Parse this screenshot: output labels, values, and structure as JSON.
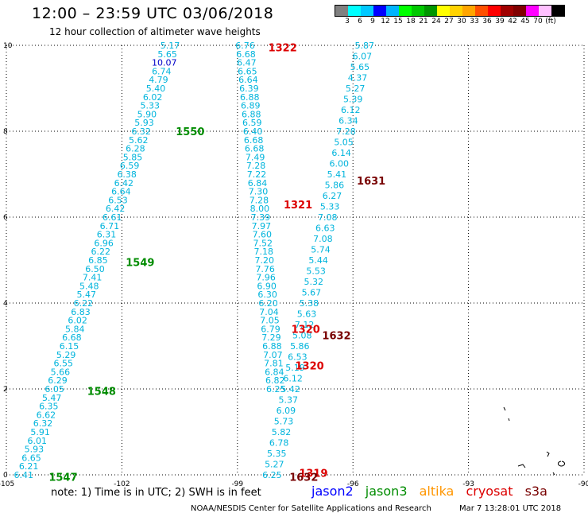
{
  "header": {
    "title": "12:00 – 23:59 UTC 03/06/2018",
    "subtitle": "12 hour collection of altimeter wave heights"
  },
  "color_scale": {
    "unit": "(ft)",
    "colors": [
      "#808080",
      "#00ffff",
      "#00c8ff",
      "#0000ff",
      "#00b4ff",
      "#00ff00",
      "#00c800",
      "#009600",
      "#ffff00",
      "#ffd200",
      "#ffa500",
      "#ff5000",
      "#ff0000",
      "#a00000",
      "#800000",
      "#ff00ff",
      "#ffc0ff",
      "#000000"
    ],
    "ticks": [
      "3",
      "6",
      "9",
      "12",
      "15",
      "18",
      "21",
      "24",
      "27",
      "30",
      "33",
      "36",
      "39",
      "42",
      "45",
      "70"
    ]
  },
  "axes": {
    "x_ticks": [
      "-105",
      "-102",
      "-99",
      "-96",
      "-93",
      "-90"
    ],
    "y_ticks": [
      "0",
      "2",
      "4",
      "6",
      "8",
      "10"
    ]
  },
  "colors": {
    "swh_text": "#00b4dc",
    "swh_text_dark": "#0000c8",
    "jason2": "#0000ff",
    "jason3": "#008c00",
    "altika": "#ff9600",
    "cryosat": "#dc0000",
    "s3a": "#780000"
  },
  "chart_data": {
    "type": "scatter",
    "xlim": [
      -105,
      -90
    ],
    "ylim": [
      0,
      10
    ],
    "tracks": [
      {
        "satellite": "jason3",
        "points": [
          {
            "x": -104.55,
            "y": 0.0,
            "v": "6.41"
          },
          {
            "x": -104.42,
            "y": 0.2,
            "v": "6.21"
          },
          {
            "x": -104.35,
            "y": 0.4,
            "v": "6.65"
          },
          {
            "x": -104.28,
            "y": 0.6,
            "v": "5.93"
          },
          {
            "x": -104.2,
            "y": 0.8,
            "v": "6.01"
          },
          {
            "x": -104.12,
            "y": 1.0,
            "v": "5.91"
          },
          {
            "x": -104.05,
            "y": 1.2,
            "v": "6.32"
          },
          {
            "x": -103.97,
            "y": 1.4,
            "v": "6.62"
          },
          {
            "x": -103.9,
            "y": 1.6,
            "v": "6.35"
          },
          {
            "x": -103.82,
            "y": 1.8,
            "v": "5.47"
          },
          {
            "x": -103.75,
            "y": 2.0,
            "v": "6.05"
          },
          {
            "x": -103.67,
            "y": 2.2,
            "v": "6.29"
          },
          {
            "x": -103.6,
            "y": 2.4,
            "v": "5.66"
          },
          {
            "x": -103.52,
            "y": 2.6,
            "v": "6.55"
          },
          {
            "x": -103.45,
            "y": 2.8,
            "v": "5.29"
          },
          {
            "x": -103.37,
            "y": 3.0,
            "v": "6.15"
          },
          {
            "x": -103.3,
            "y": 3.2,
            "v": "6.68"
          },
          {
            "x": -103.22,
            "y": 3.4,
            "v": "5.84"
          },
          {
            "x": -103.15,
            "y": 3.6,
            "v": "6.02"
          },
          {
            "x": -103.07,
            "y": 3.8,
            "v": "6.83"
          },
          {
            "x": -103.0,
            "y": 4.0,
            "v": "6.22"
          },
          {
            "x": -102.92,
            "y": 4.2,
            "v": "5.47"
          },
          {
            "x": -102.85,
            "y": 4.4,
            "v": "5.48"
          },
          {
            "x": -102.77,
            "y": 4.6,
            "v": "7.41"
          },
          {
            "x": -102.7,
            "y": 4.8,
            "v": "6.50"
          },
          {
            "x": -102.62,
            "y": 5.0,
            "v": "6.85"
          },
          {
            "x": -102.55,
            "y": 5.2,
            "v": "6.22"
          },
          {
            "x": -102.47,
            "y": 5.4,
            "v": "6.96"
          },
          {
            "x": -102.4,
            "y": 5.6,
            "v": "6.31"
          },
          {
            "x": -102.32,
            "y": 5.8,
            "v": "6.71"
          },
          {
            "x": -102.25,
            "y": 6.0,
            "v": "6.61"
          },
          {
            "x": -102.17,
            "y": 6.2,
            "v": "6.42"
          },
          {
            "x": -102.1,
            "y": 6.4,
            "v": "6.53"
          },
          {
            "x": -102.02,
            "y": 6.6,
            "v": "6.64"
          },
          {
            "x": -101.95,
            "y": 6.8,
            "v": "6.42"
          },
          {
            "x": -101.87,
            "y": 7.0,
            "v": "6.38"
          },
          {
            "x": -101.8,
            "y": 7.2,
            "v": "6.59"
          },
          {
            "x": -101.72,
            "y": 7.4,
            "v": "5.85"
          },
          {
            "x": -101.65,
            "y": 7.6,
            "v": "6.28"
          },
          {
            "x": -101.57,
            "y": 7.8,
            "v": "5.62"
          },
          {
            "x": -101.5,
            "y": 8.0,
            "v": "6.32"
          },
          {
            "x": -101.42,
            "y": 8.2,
            "v": "5.93"
          },
          {
            "x": -101.35,
            "y": 8.4,
            "v": "5.90"
          },
          {
            "x": -101.27,
            "y": 8.6,
            "v": "5.33"
          },
          {
            "x": -101.2,
            "y": 8.8,
            "v": "6.02"
          },
          {
            "x": -101.12,
            "y": 9.0,
            "v": "5.40"
          },
          {
            "x": -101.05,
            "y": 9.2,
            "v": "4.79"
          },
          {
            "x": -100.97,
            "y": 9.4,
            "v": "6.74"
          },
          {
            "x": -100.9,
            "y": 9.6,
            "v": "10.07"
          },
          {
            "x": -100.82,
            "y": 9.8,
            "v": "5.65"
          },
          {
            "x": -100.75,
            "y": 10.0,
            "v": "5.17"
          }
        ]
      },
      {
        "satellite": "cryosat",
        "points": [
          {
            "x": -98.8,
            "y": 10.0,
            "v": "6.76"
          },
          {
            "x": -98.78,
            "y": 9.8,
            "v": "6.68"
          },
          {
            "x": -98.76,
            "y": 9.6,
            "v": "6.47"
          },
          {
            "x": -98.74,
            "y": 9.4,
            "v": "6.65"
          },
          {
            "x": -98.72,
            "y": 9.2,
            "v": "6.64"
          },
          {
            "x": -98.7,
            "y": 9.0,
            "v": "6.39"
          },
          {
            "x": -98.68,
            "y": 8.8,
            "v": "6.88"
          },
          {
            "x": -98.66,
            "y": 8.6,
            "v": "6.89"
          },
          {
            "x": -98.64,
            "y": 8.4,
            "v": "6.88"
          },
          {
            "x": -98.62,
            "y": 8.2,
            "v": "6.59"
          },
          {
            "x": -98.6,
            "y": 8.0,
            "v": "6.40"
          },
          {
            "x": -98.58,
            "y": 7.8,
            "v": "6.68"
          },
          {
            "x": -98.56,
            "y": 7.6,
            "v": "6.68"
          },
          {
            "x": -98.54,
            "y": 7.4,
            "v": "7.49"
          },
          {
            "x": -98.52,
            "y": 7.2,
            "v": "7.28"
          },
          {
            "x": -98.5,
            "y": 7.0,
            "v": "7.22"
          },
          {
            "x": -98.48,
            "y": 6.8,
            "v": "6.84"
          },
          {
            "x": -98.46,
            "y": 6.6,
            "v": "7.30"
          },
          {
            "x": -98.44,
            "y": 6.4,
            "v": "7.28"
          },
          {
            "x": -98.42,
            "y": 6.2,
            "v": "8.00"
          },
          {
            "x": -98.4,
            "y": 6.0,
            "v": "7.39"
          },
          {
            "x": -98.38,
            "y": 5.8,
            "v": "7.97"
          },
          {
            "x": -98.36,
            "y": 5.6,
            "v": "7.60"
          },
          {
            "x": -98.34,
            "y": 5.4,
            "v": "7.52"
          },
          {
            "x": -98.32,
            "y": 5.2,
            "v": "7.18"
          },
          {
            "x": -98.3,
            "y": 5.0,
            "v": "7.20"
          },
          {
            "x": -98.28,
            "y": 4.8,
            "v": "7.76"
          },
          {
            "x": -98.26,
            "y": 4.6,
            "v": "7.96"
          },
          {
            "x": -98.24,
            "y": 4.4,
            "v": "6.90"
          },
          {
            "x": -98.22,
            "y": 4.2,
            "v": "6.30"
          },
          {
            "x": -98.2,
            "y": 4.0,
            "v": "6.20"
          },
          {
            "x": -98.18,
            "y": 3.8,
            "v": "7.04"
          },
          {
            "x": -98.16,
            "y": 3.6,
            "v": "7.05"
          },
          {
            "x": -98.14,
            "y": 3.4,
            "v": "6.79"
          },
          {
            "x": -98.12,
            "y": 3.2,
            "v": "7.29"
          },
          {
            "x": -98.1,
            "y": 3.0,
            "v": "6.88"
          },
          {
            "x": -98.08,
            "y": 2.8,
            "v": "7.07"
          },
          {
            "x": -98.06,
            "y": 2.6,
            "v": "7.81"
          },
          {
            "x": -98.04,
            "y": 2.4,
            "v": "6.84"
          },
          {
            "x": -98.02,
            "y": 2.2,
            "v": "6.82"
          },
          {
            "x": -98.0,
            "y": 2.0,
            "v": "6.25"
          }
        ]
      },
      {
        "satellite": "s3a",
        "points": [
          {
            "x": -95.7,
            "y": 10.0,
            "v": "5.87"
          },
          {
            "x": -95.76,
            "y": 9.75,
            "v": "6.07"
          },
          {
            "x": -95.82,
            "y": 9.5,
            "v": "5.65"
          },
          {
            "x": -95.88,
            "y": 9.25,
            "v": "4.37"
          },
          {
            "x": -95.94,
            "y": 9.0,
            "v": "5.27"
          },
          {
            "x": -96.0,
            "y": 8.75,
            "v": "5.39"
          },
          {
            "x": -96.06,
            "y": 8.5,
            "v": "6.12"
          },
          {
            "x": -96.12,
            "y": 8.25,
            "v": "6.34"
          },
          {
            "x": -96.18,
            "y": 8.0,
            "v": "7.28"
          },
          {
            "x": -96.24,
            "y": 7.75,
            "v": "5.05"
          },
          {
            "x": -96.3,
            "y": 7.5,
            "v": "6.14"
          },
          {
            "x": -96.36,
            "y": 7.25,
            "v": "6.00"
          },
          {
            "x": -96.42,
            "y": 7.0,
            "v": "5.41"
          },
          {
            "x": -96.48,
            "y": 6.75,
            "v": "5.86"
          },
          {
            "x": -96.54,
            "y": 6.5,
            "v": "6.27"
          },
          {
            "x": -96.6,
            "y": 6.25,
            "v": "5.33"
          },
          {
            "x": -96.66,
            "y": 6.0,
            "v": "7.08"
          },
          {
            "x": -96.72,
            "y": 5.75,
            "v": "6.63"
          },
          {
            "x": -96.78,
            "y": 5.5,
            "v": "7.08"
          },
          {
            "x": -96.84,
            "y": 5.25,
            "v": "5.74"
          },
          {
            "x": -96.9,
            "y": 5.0,
            "v": "5.44"
          },
          {
            "x": -96.96,
            "y": 4.75,
            "v": "5.53"
          },
          {
            "x": -97.02,
            "y": 4.5,
            "v": "5.32"
          },
          {
            "x": -97.08,
            "y": 4.25,
            "v": "5.67"
          },
          {
            "x": -97.14,
            "y": 4.0,
            "v": "5.38"
          },
          {
            "x": -97.2,
            "y": 3.75,
            "v": "5.63"
          },
          {
            "x": -97.26,
            "y": 3.5,
            "v": "7.12"
          },
          {
            "x": -97.32,
            "y": 3.25,
            "v": "5.08"
          },
          {
            "x": -97.38,
            "y": 3.0,
            "v": "5.86"
          },
          {
            "x": -97.44,
            "y": 2.75,
            "v": "6.53"
          },
          {
            "x": -97.5,
            "y": 2.5,
            "v": "5.19"
          },
          {
            "x": -97.56,
            "y": 2.25,
            "v": "6.12"
          },
          {
            "x": -97.62,
            "y": 2.0,
            "v": "5.42"
          },
          {
            "x": -97.68,
            "y": 1.75,
            "v": "5.37"
          },
          {
            "x": -97.74,
            "y": 1.5,
            "v": "6.09"
          },
          {
            "x": -97.8,
            "y": 1.25,
            "v": "5.73"
          },
          {
            "x": -97.86,
            "y": 1.0,
            "v": "5.82"
          },
          {
            "x": -97.92,
            "y": 0.75,
            "v": "6.78"
          },
          {
            "x": -97.98,
            "y": 0.5,
            "v": "5.35"
          },
          {
            "x": -98.04,
            "y": 0.25,
            "v": "5.27"
          },
          {
            "x": -98.1,
            "y": 0.0,
            "v": "6.25"
          }
        ]
      }
    ],
    "time_labels": [
      {
        "text": "1547",
        "x": -103.9,
        "y": -0.05,
        "satellite": "jason3"
      },
      {
        "text": "1548",
        "x": -102.9,
        "y": 1.95,
        "satellite": "jason3"
      },
      {
        "text": "1549",
        "x": -101.9,
        "y": 4.95,
        "satellite": "jason3"
      },
      {
        "text": "1550",
        "x": -100.6,
        "y": 8.0,
        "satellite": "jason3"
      },
      {
        "text": "1322",
        "x": -98.2,
        "y": 9.95,
        "satellite": "cryosat"
      },
      {
        "text": "1321",
        "x": -97.8,
        "y": 6.3,
        "satellite": "cryosat"
      },
      {
        "text": "1320",
        "x": -97.6,
        "y": 3.4,
        "satellite": "cryosat"
      },
      {
        "text": "1320",
        "x": -97.5,
        "y": 2.55,
        "satellite": "cryosat"
      },
      {
        "text": "1319",
        "x": -97.4,
        "y": 0.05,
        "satellite": "cryosat"
      },
      {
        "text": "1631",
        "x": -95.9,
        "y": 6.85,
        "satellite": "s3a"
      },
      {
        "text": "1632",
        "x": -96.8,
        "y": 3.25,
        "satellite": "s3a"
      },
      {
        "text": "1632",
        "x": -97.65,
        "y": -0.05,
        "satellite": "s3a"
      }
    ]
  },
  "note": "note: 1) Time is in UTC; 2) SWH is in feet",
  "satellite_legend": {
    "jason2": "jason2",
    "jason3": "jason3",
    "altika": "altika",
    "cryosat": "cryosat",
    "s3a": "s3a"
  },
  "footer": {
    "source": "NOAA/NESDIS Center for Satellite Applications and Research",
    "timestamp": "Mar  7 13:28:01 UTC 2018"
  }
}
